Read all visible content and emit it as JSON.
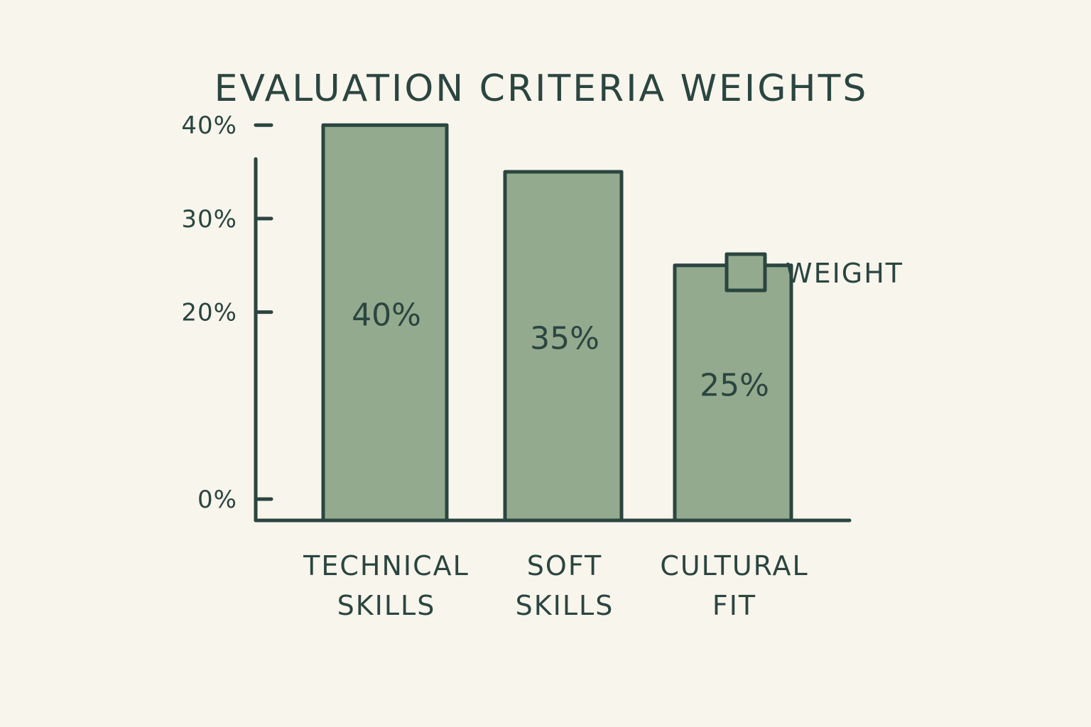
{
  "chart_data": {
    "type": "bar",
    "title": "EVALUATION CRITERIA WEIGHTS",
    "xlabel": "",
    "ylabel": "",
    "categories": [
      [
        "TECHNICAL",
        "SKILLS"
      ],
      [
        "SOFT",
        "SKILLS"
      ],
      [
        "CULTURAL",
        "FIT"
      ]
    ],
    "series": [
      {
        "name": "WEIGHT",
        "values": [
          40,
          35,
          25
        ],
        "data_labels": [
          "40%",
          "35%",
          "25%"
        ],
        "color": "#93aa8e"
      }
    ],
    "y_ticks": [
      0,
      20,
      30,
      40
    ],
    "y_tick_labels": [
      "0%",
      "20%",
      "30%",
      "40%"
    ],
    "ylim": [
      0,
      47
    ],
    "grid": false,
    "legend_position": "right",
    "colors": {
      "ink": "#2b4540",
      "background": "#f8f5ec"
    }
  }
}
